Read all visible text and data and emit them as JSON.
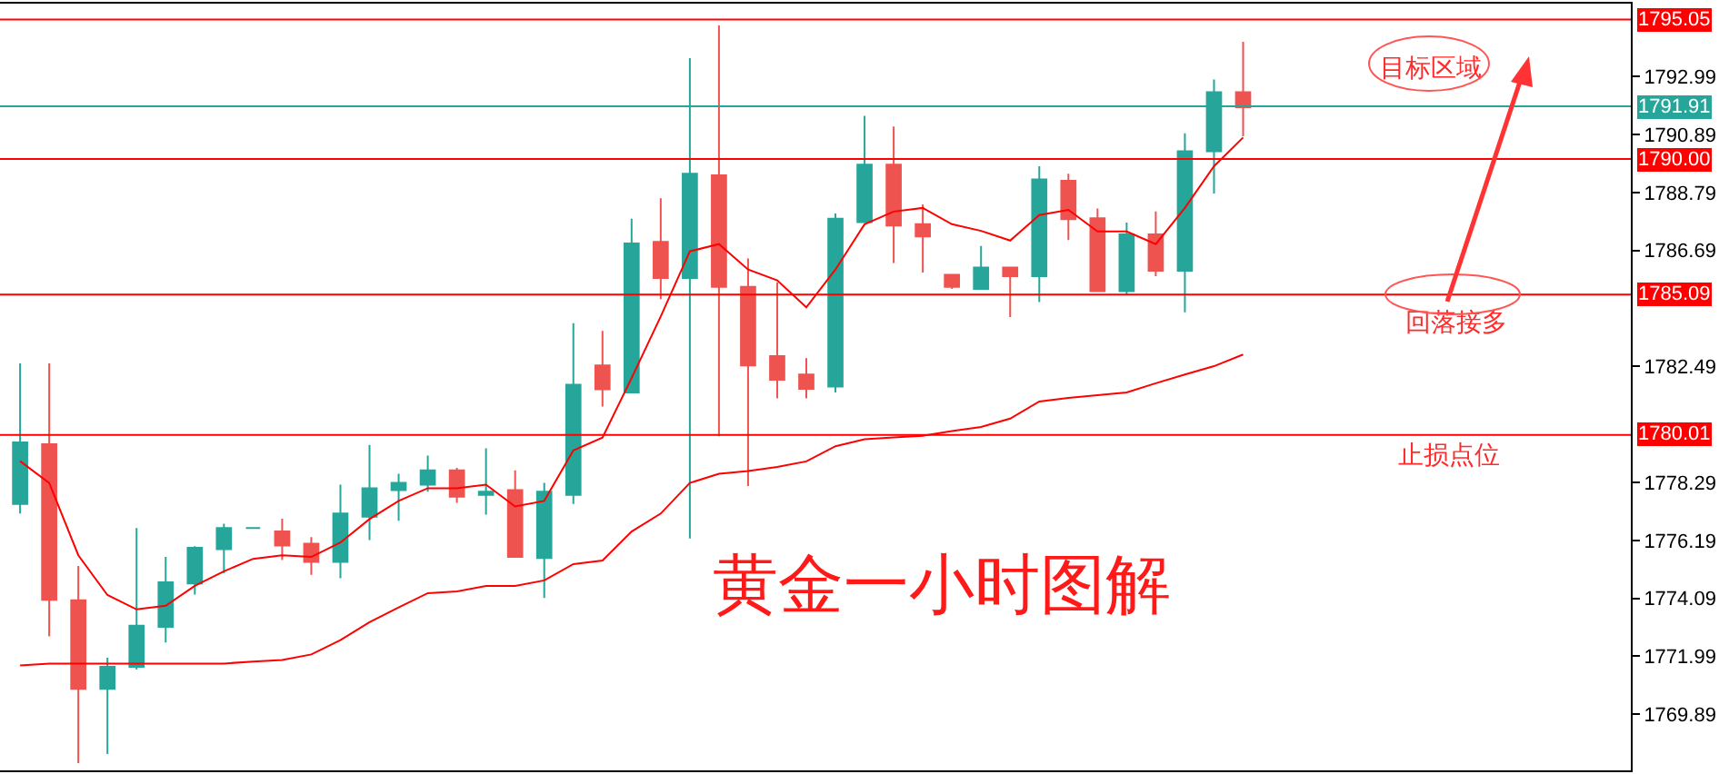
{
  "chart_data": {
    "type": "candlestick",
    "title": "黄金一小时图解",
    "categories": [
      null,
      null,
      null,
      null,
      null,
      null,
      null,
      null,
      null,
      null,
      null,
      null,
      null,
      null,
      null,
      null,
      null,
      null,
      null,
      null,
      null,
      null,
      null,
      null,
      null,
      null,
      null,
      null,
      null,
      null,
      null,
      null,
      null,
      null,
      null,
      null,
      null,
      null,
      null,
      null,
      null,
      null,
      null
    ],
    "ohlc": [
      [
        1777.51,
        1782.6,
        1777.16,
        1779.74
      ],
      [
        1779.67,
        1782.6,
        1772.71,
        1774.04
      ],
      [
        1774.02,
        1775.26,
        1768.12,
        1770.81
      ],
      [
        1770.81,
        1771.94,
        1768.45,
        1771.61
      ],
      [
        1771.61,
        1776.64,
        1771.51,
        1773.1
      ],
      [
        1773.06,
        1775.59,
        1772.49,
        1774.67
      ],
      [
        1774.63,
        1775.98,
        1774.23,
        1775.92
      ],
      [
        1775.87,
        1776.79,
        1775.0,
        1776.64
      ],
      [
        1776.64,
        1776.64,
        1776.64,
        1776.64
      ],
      [
        1776.51,
        1776.97,
        1775.48,
        1776.0
      ],
      [
        1776.07,
        1776.31,
        1774.94,
        1775.41
      ],
      [
        1775.41,
        1778.21,
        1774.82,
        1777.16
      ],
      [
        1777.05,
        1779.65,
        1776.2,
        1778.08
      ],
      [
        1778.01,
        1778.6,
        1776.9,
        1778.27
      ],
      [
        1778.21,
        1779.26,
        1777.95,
        1778.73
      ],
      [
        1778.73,
        1778.82,
        1777.55,
        1777.77
      ],
      [
        1777.84,
        1779.52,
        1777.12,
        1777.95
      ],
      [
        1778.01,
        1778.73,
        1775.59,
        1775.59
      ],
      [
        1775.55,
        1778.27,
        1774.1,
        1777.95
      ],
      [
        1777.84,
        1784.06,
        1777.51,
        1781.83
      ],
      [
        1782.53,
        1783.78,
        1781.04,
        1781.66
      ],
      [
        1781.55,
        1787.84,
        1781.55,
        1786.94
      ],
      [
        1787.0,
        1788.58,
        1784.93,
        1785.69
      ],
      [
        1785.69,
        1793.66,
        1776.26,
        1789.47
      ],
      [
        1789.41,
        1794.84,
        1779.96,
        1785.37
      ],
      [
        1785.37,
        1786.4,
        1778.16,
        1782.53
      ],
      [
        1782.86,
        1785.54,
        1781.33,
        1782.01
      ],
      [
        1782.2,
        1782.79,
        1781.33,
        1781.68
      ],
      [
        1781.76,
        1788.03,
        1781.55,
        1787.84
      ],
      [
        1787.72,
        1791.57,
        1787.72,
        1789.8
      ],
      [
        1789.8,
        1791.18,
        1786.24,
        1787.59
      ],
      [
        1787.64,
        1788.36,
        1785.89,
        1787.2
      ],
      [
        1785.81,
        1785.81,
        1785.3,
        1785.37
      ],
      [
        1785.3,
        1786.85,
        1785.3,
        1786.07
      ],
      [
        1786.07,
        1786.07,
        1784.28,
        1785.76
      ],
      [
        1785.76,
        1789.74,
        1784.82,
        1789.26
      ],
      [
        1789.21,
        1789.47,
        1787.07,
        1787.82
      ],
      [
        1787.86,
        1788.21,
        1785.2,
        1785.22
      ],
      [
        1785.22,
        1787.7,
        1785.09,
        1787.27
      ],
      [
        1787.27,
        1788.1,
        1785.76,
        1785.96
      ],
      [
        1785.96,
        1790.93,
        1784.45,
        1790.28
      ],
      [
        1790.28,
        1792.88,
        1788.75,
        1792.42
      ],
      [
        1792.42,
        1794.25,
        1790.83,
        1791.88
      ]
    ],
    "series": [
      {
        "type": "line",
        "color": "#ff0000",
        "values": [
          1779.06,
          1778.27,
          1775.65,
          1774.21,
          1773.69,
          1773.82,
          1774.54,
          1775.07,
          1775.52,
          1775.65,
          1775.59,
          1776.11,
          1776.96,
          1777.62,
          1778.08,
          1778.08,
          1778.21,
          1777.42,
          1777.62,
          1779.45,
          1779.91,
          1782.07,
          1784.3,
          1786.66,
          1786.92,
          1786.0,
          1785.61,
          1784.63,
          1786.0,
          1787.64,
          1788.1,
          1788.23,
          1787.64,
          1787.4,
          1787.05,
          1787.97,
          1788.16,
          1787.38,
          1787.38,
          1786.92,
          1788.23,
          1789.74,
          1790.78
        ]
      },
      {
        "type": "line",
        "color": "#ff0000",
        "values": [
          1771.66,
          1771.73,
          1771.73,
          1771.73,
          1771.73,
          1771.73,
          1771.73,
          1771.73,
          1771.8,
          1771.86,
          1772.06,
          1772.58,
          1773.23,
          1773.76,
          1774.28,
          1774.34,
          1774.54,
          1774.54,
          1774.74,
          1775.33,
          1775.46,
          1776.51,
          1777.16,
          1778.27,
          1778.6,
          1778.7,
          1778.85,
          1779.05,
          1779.6,
          1779.85,
          1779.92,
          1779.98,
          1780.15,
          1780.3,
          1780.6,
          1781.22,
          1781.35,
          1781.45,
          1781.55,
          1781.88,
          1782.2,
          1782.5,
          1782.92
        ]
      }
    ],
    "ylim": [
      1767.86,
      1795.63
    ],
    "yticks": [
      1769.89,
      1771.99,
      1774.09,
      1776.19,
      1778.29,
      1782.49,
      1786.69,
      1788.79,
      1790.89,
      1792.99
    ],
    "tick_labels": "y",
    "grid": false,
    "ref_lines": [
      {
        "axis": "y",
        "value": 1795.05,
        "label": "1795.05",
        "color": "#ff0000"
      },
      {
        "axis": "y",
        "value": 1791.91,
        "label": "1791.91",
        "color": "#26a69a"
      },
      {
        "axis": "y",
        "value": 1790.0,
        "label": "1790.00",
        "color": "#ff0000"
      },
      {
        "axis": "y",
        "value": 1785.09,
        "label": "1785.09",
        "color": "#ff0000"
      },
      {
        "axis": "y",
        "value": 1780.01,
        "label": "1780.01",
        "color": "#ff0000"
      }
    ],
    "annotations": [
      "目标区域",
      "回落接多",
      "止损点位"
    ]
  }
}
